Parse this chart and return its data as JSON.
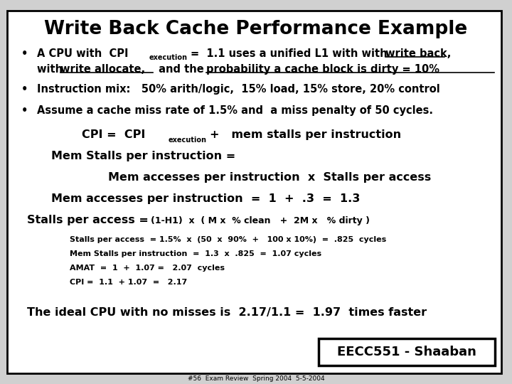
{
  "title": "Write Back Cache Performance Example",
  "bg_color": "#d0d0d0",
  "slide_bg": "#ffffff",
  "border_color": "#000000",
  "title_fontsize": 19,
  "footer_text": "#56  Exam Review  Spring 2004  5-5-2004",
  "badge_text": "EECC551 - Shaaban"
}
